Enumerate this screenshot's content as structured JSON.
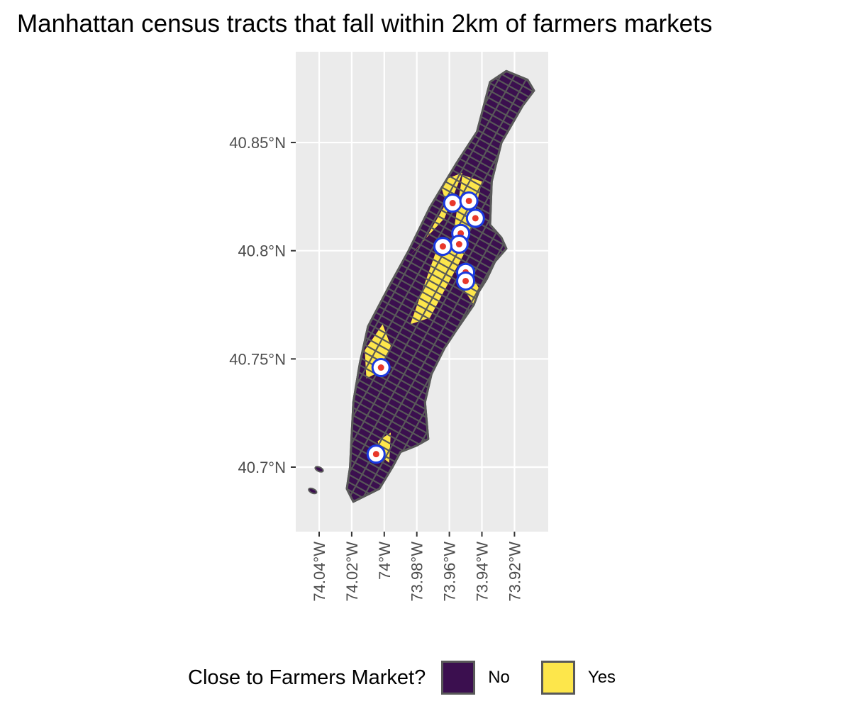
{
  "title": "Manhattan census tracts that fall within 2km of farmers markets",
  "map": {
    "panel_background": "#ebebeb",
    "grid_color": "#ffffff",
    "tract_border_color": "#595959",
    "x_ticks": [
      {
        "lon": -74.04,
        "label": "74.04°W"
      },
      {
        "lon": -74.02,
        "label": "74.02°W"
      },
      {
        "lon": -74.0,
        "label": "74°W"
      },
      {
        "lon": -73.98,
        "label": "73.98°W"
      },
      {
        "lon": -73.96,
        "label": "73.96°W"
      },
      {
        "lon": -73.94,
        "label": "73.94°W"
      },
      {
        "lon": -73.92,
        "label": "73.92°W"
      }
    ],
    "y_ticks": [
      {
        "lat": 40.85,
        "label": "40.85°N"
      },
      {
        "lat": 40.8,
        "label": "40.8°N"
      },
      {
        "lat": 40.75,
        "label": "40.75°N"
      },
      {
        "lat": 40.7,
        "label": "40.7°N"
      }
    ],
    "lon_range": [
      -74.055,
      -73.9
    ],
    "lat_range": [
      40.67,
      40.89
    ],
    "manhattan_outline": [
      [
        -74.019,
        40.684
      ],
      [
        -74.003,
        40.69
      ],
      [
        -73.995,
        40.7
      ],
      [
        -73.99,
        40.707
      ],
      [
        -73.98,
        40.71
      ],
      [
        -73.973,
        40.713
      ],
      [
        -73.975,
        40.73
      ],
      [
        -73.971,
        40.743
      ],
      [
        -73.963,
        40.755
      ],
      [
        -73.956,
        40.763
      ],
      [
        -73.945,
        40.775
      ],
      [
        -73.942,
        40.781
      ],
      [
        -73.937,
        40.787
      ],
      [
        -73.932,
        40.795
      ],
      [
        -73.925,
        40.801
      ],
      [
        -73.928,
        40.806
      ],
      [
        -73.935,
        40.812
      ],
      [
        -73.934,
        40.832
      ],
      [
        -73.928,
        40.85
      ],
      [
        -73.915,
        40.867
      ],
      [
        -73.908,
        40.874
      ],
      [
        -73.912,
        40.879
      ],
      [
        -73.925,
        40.883
      ],
      [
        -73.935,
        40.878
      ],
      [
        -73.943,
        40.855
      ],
      [
        -73.956,
        40.84
      ],
      [
        -73.972,
        40.82
      ],
      [
        -73.985,
        40.8
      ],
      [
        -73.996,
        40.785
      ],
      [
        -74.01,
        40.765
      ],
      [
        -74.015,
        40.748
      ],
      [
        -74.019,
        40.73
      ],
      [
        -74.02,
        40.715
      ],
      [
        -74.021,
        40.7
      ],
      [
        -74.023,
        40.69
      ]
    ],
    "close_tracts": [
      [
        [
          -74.012,
          40.754
        ],
        [
          -74.001,
          40.766
        ],
        [
          -73.996,
          40.756
        ],
        [
          -74.003,
          40.744
        ],
        [
          -74.011,
          40.741
        ]
      ],
      [
        [
          -73.984,
          40.766
        ],
        [
          -73.972,
          40.769
        ],
        [
          -73.95,
          40.8
        ],
        [
          -73.958,
          40.805
        ],
        [
          -73.968,
          40.8
        ]
      ],
      [
        [
          -73.958,
          40.806
        ],
        [
          -73.949,
          40.803
        ],
        [
          -73.94,
          40.832
        ],
        [
          -73.952,
          40.835
        ]
      ],
      [
        [
          -73.984,
          40.798
        ],
        [
          -73.975,
          40.805
        ],
        [
          -73.962,
          40.822
        ],
        [
          -73.966,
          40.832
        ],
        [
          -73.952,
          40.836
        ],
        [
          -73.963,
          40.815
        ]
      ],
      [
        [
          -73.951,
          40.782
        ],
        [
          -73.944,
          40.774
        ],
        [
          -73.94,
          40.78
        ],
        [
          -73.945,
          40.787
        ]
      ],
      [
        [
          -74.004,
          40.712
        ],
        [
          -73.996,
          40.716
        ],
        [
          -73.997,
          40.702
        ],
        [
          -74.002,
          40.705
        ]
      ]
    ],
    "markets": [
      {
        "lon": -73.958,
        "lat": 40.822
      },
      {
        "lon": -73.948,
        "lat": 40.823
      },
      {
        "lon": -73.944,
        "lat": 40.815
      },
      {
        "lon": -73.953,
        "lat": 40.808
      },
      {
        "lon": -73.954,
        "lat": 40.803
      },
      {
        "lon": -73.964,
        "lat": 40.802
      },
      {
        "lon": -73.95,
        "lat": 40.79
      },
      {
        "lon": -73.95,
        "lat": 40.786
      },
      {
        "lon": -74.002,
        "lat": 40.746
      },
      {
        "lon": -74.005,
        "lat": 40.706
      }
    ],
    "islands": [
      {
        "lon": -74.044,
        "lat": 40.689
      },
      {
        "lon": -74.04,
        "lat": 40.699
      }
    ],
    "no_color": "#3b0f4f",
    "yes_color": "#fde64b",
    "market_ring_color": "#1a3ae0",
    "market_fill_color": "#ffffff",
    "market_dot_color": "#e8382a"
  },
  "legend": {
    "title": "Close to Farmers Market?",
    "items": [
      {
        "label": "No",
        "color": "#3b0f4f"
      },
      {
        "label": "Yes",
        "color": "#fde64b"
      }
    ]
  }
}
